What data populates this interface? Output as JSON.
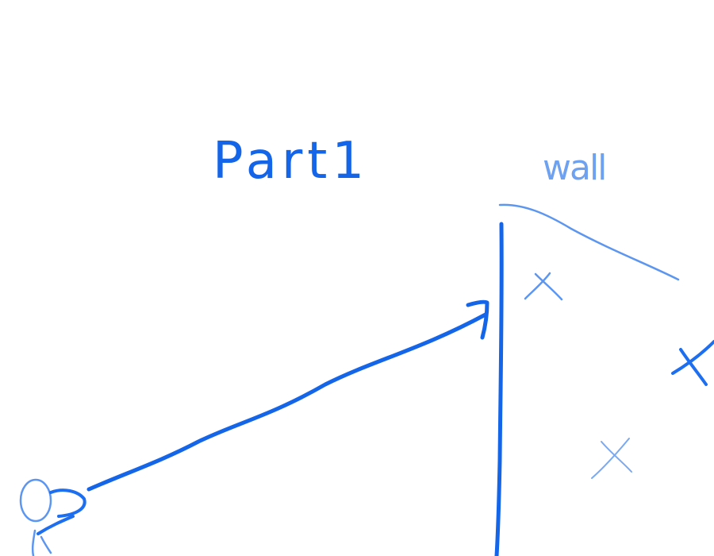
{
  "labels": {
    "part": "Part1",
    "wall": "wall"
  },
  "colors": {
    "ink_primary": "#1565e8",
    "ink_light": "#6ea2f0",
    "background": "#ffffff"
  },
  "icons": {
    "crosses": [
      "x-mark-icon",
      "x-mark-icon",
      "x-mark-icon",
      "x-mark-icon"
    ],
    "origin": "sensor-icon",
    "arrow": "arrow-head-icon"
  }
}
